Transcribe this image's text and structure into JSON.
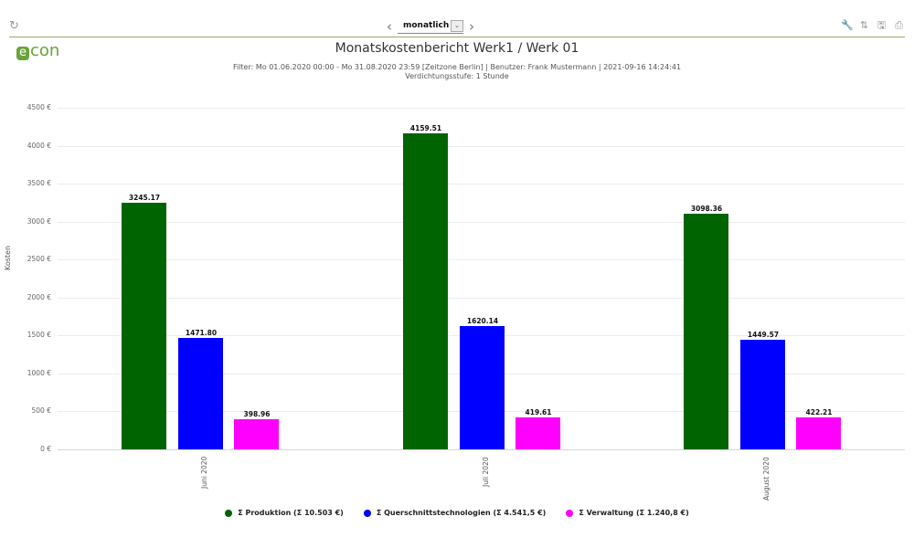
{
  "toolbar": {
    "refresh_icon": "↻",
    "prev_icon": "‹",
    "next_icon": "›",
    "period_value": "monatlich",
    "dropdown_icon": "⌄",
    "tools": [
      {
        "name": "wrench-icon",
        "glyph": "🔧"
      },
      {
        "name": "sort-icon",
        "glyph": "⇅"
      },
      {
        "name": "save-icon",
        "glyph": "🖫"
      },
      {
        "name": "print-icon",
        "glyph": "⎙"
      }
    ]
  },
  "logo": {
    "e": "e",
    "rest": "con"
  },
  "header": {
    "title": "Monatskostenbericht Werk1  / Werk 01",
    "subtitle_line1": "Filter: Mo 01.06.2020 00:00 - Mo 31.08.2020 23:59 [Zeitzone Berlin] | Benutzer: Frank Mustermann | 2021-09-16 14:24:41",
    "subtitle_line2": "Verdichtungsstufe: 1 Stunde"
  },
  "chart_data": {
    "type": "bar",
    "title": "Monatskostenbericht Werk1 / Werk 01",
    "xlabel": "",
    "ylabel": "Kosten",
    "ylim": [
      0,
      4500
    ],
    "y_ticks": [
      "0 €",
      "500 €",
      "1000 €",
      "1500 €",
      "2000 €",
      "2500 €",
      "3000 €",
      "3500 €",
      "4000 €",
      "4500 €"
    ],
    "grid": true,
    "legend_position": "bottom",
    "categories": [
      "Juni 2020",
      "Juli 2020",
      "August 2020"
    ],
    "series": [
      {
        "name": "Σ Produktion (Σ 10.503 €)",
        "color": "#006400",
        "values": [
          3245.17,
          4159.51,
          3098.36
        ],
        "labels": [
          "3245.17",
          "4159.51",
          "3098.36"
        ]
      },
      {
        "name": "Σ Querschnittstechnologien (Σ 4.541,5 €)",
        "color": "#0000ff",
        "values": [
          1471.8,
          1620.14,
          1449.57
        ],
        "labels": [
          "1471.80",
          "1620.14",
          "1449.57"
        ]
      },
      {
        "name": "Σ Verwaltung (Σ 1.240,8 €)",
        "color": "#ff00ff",
        "values": [
          398.96,
          419.61,
          422.21
        ],
        "labels": [
          "398.96",
          "419.61",
          "422.21"
        ]
      }
    ]
  }
}
